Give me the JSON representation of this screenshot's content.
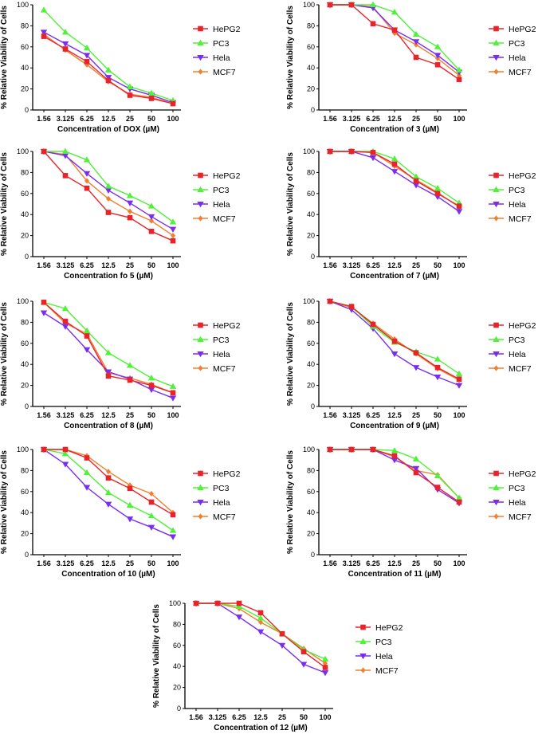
{
  "series_order": [
    "HePG2",
    "PC3",
    "Hela",
    "MCF7"
  ],
  "series_colors": {
    "HePG2": "#e8242a",
    "PC3": "#4ef237",
    "Hela": "#7a2cf0",
    "MCF7": "#f08030"
  },
  "series_markers": {
    "HePG2": "square",
    "PC3": "triangle-up",
    "Hela": "triangle-down",
    "MCF7": "diamond"
  },
  "chart_data": [
    {
      "type": "line",
      "title": "",
      "xlabel": "Concentration of DOX (µM)",
      "ylabel": "% Relative Viability of Cells",
      "categories": [
        "1.56",
        "3.125",
        "6.25",
        "12.5",
        "25",
        "50",
        "100"
      ],
      "ylim": [
        0,
        100
      ],
      "yticks": [
        0,
        20,
        40,
        60,
        80,
        100
      ],
      "legend": [
        "HePG2",
        "PC3",
        "Hela",
        "MCF7"
      ],
      "series": [
        {
          "name": "HePG2",
          "values": [
            70,
            58,
            46,
            28,
            14,
            11,
            6
          ]
        },
        {
          "name": "PC3",
          "values": [
            95,
            74,
            59,
            38,
            22,
            16,
            9
          ]
        },
        {
          "name": "Hela",
          "values": [
            74,
            63,
            52,
            31,
            20,
            14,
            7
          ]
        },
        {
          "name": "MCF7",
          "values": [
            72,
            57,
            43,
            27,
            15,
            12,
            6
          ]
        }
      ]
    },
    {
      "type": "line",
      "title": "",
      "xlabel": "Concentration of 3 (µM)",
      "ylabel": "% Relative Viability of Cells",
      "categories": [
        "1.56",
        "3.125",
        "6.25",
        "12.5",
        "25",
        "50",
        "100"
      ],
      "ylim": [
        0,
        100
      ],
      "yticks": [
        0,
        20,
        40,
        60,
        80,
        100
      ],
      "legend": [
        "HePG2",
        "PC3",
        "Hela",
        "MCF7"
      ],
      "series": [
        {
          "name": "HePG2",
          "values": [
            100,
            100,
            82,
            76,
            50,
            43,
            29
          ]
        },
        {
          "name": "PC3",
          "values": [
            100,
            100,
            100,
            93,
            72,
            60,
            38
          ]
        },
        {
          "name": "Hela",
          "values": [
            100,
            100,
            97,
            76,
            65,
            52,
            36
          ]
        },
        {
          "name": "MCF7",
          "values": [
            100,
            100,
            98,
            73,
            62,
            49,
            33
          ]
        }
      ]
    },
    {
      "type": "line",
      "title": "",
      "xlabel": "Concentration fo 5 (µM)",
      "ylabel": "% Relative Viability of Cells",
      "categories": [
        "1.56",
        "3.125",
        "6.25",
        "12.5",
        "25",
        "50",
        "100"
      ],
      "ylim": [
        0,
        100
      ],
      "yticks": [
        0,
        20,
        40,
        60,
        80,
        100
      ],
      "legend": [
        "HePG2",
        "PC3",
        "Hela",
        "MCF7"
      ],
      "series": [
        {
          "name": "HePG2",
          "values": [
            100,
            77,
            65,
            42,
            37,
            24,
            15
          ]
        },
        {
          "name": "PC3",
          "values": [
            100,
            100,
            92,
            67,
            58,
            48,
            33
          ]
        },
        {
          "name": "Hela",
          "values": [
            100,
            96,
            79,
            63,
            51,
            38,
            26
          ]
        },
        {
          "name": "MCF7",
          "values": [
            100,
            97,
            72,
            55,
            43,
            34,
            20
          ]
        }
      ]
    },
    {
      "type": "line",
      "title": "",
      "xlabel": "Concentration of 7 (µM)",
      "ylabel": "% Relative Viability of Cells",
      "categories": [
        "1.56",
        "3.125",
        "6.25",
        "12.5",
        "25",
        "50",
        "100"
      ],
      "ylim": [
        0,
        100
      ],
      "yticks": [
        0,
        20,
        40,
        60,
        80,
        100
      ],
      "legend": [
        "HePG2",
        "PC3",
        "Hela",
        "MCF7"
      ],
      "series": [
        {
          "name": "HePG2",
          "values": [
            100,
            100,
            99,
            88,
            72,
            60,
            48
          ]
        },
        {
          "name": "PC3",
          "values": [
            100,
            100,
            100,
            93,
            76,
            65,
            51
          ]
        },
        {
          "name": "Hela",
          "values": [
            100,
            100,
            94,
            81,
            68,
            57,
            43
          ]
        },
        {
          "name": "MCF7",
          "values": [
            100,
            100,
            99,
            86,
            73,
            61,
            47
          ]
        }
      ]
    },
    {
      "type": "line",
      "title": "",
      "xlabel": "Concentration of 8 (µM)",
      "ylabel": "% Relative Viability of Cells",
      "categories": [
        "1.56",
        "3.125",
        "6.25",
        "12.5",
        "25",
        "50",
        "100"
      ],
      "ylim": [
        0,
        100
      ],
      "yticks": [
        0,
        20,
        40,
        60,
        80,
        100
      ],
      "legend": [
        "HePG2",
        "PC3",
        "Hela",
        "MCF7"
      ],
      "series": [
        {
          "name": "HePG2",
          "values": [
            99,
            81,
            67,
            29,
            25,
            20,
            13
          ]
        },
        {
          "name": "PC3",
          "values": [
            99,
            93,
            72,
            51,
            39,
            27,
            19
          ]
        },
        {
          "name": "Hela",
          "values": [
            89,
            76,
            54,
            33,
            26,
            16,
            8
          ]
        },
        {
          "name": "MCF7",
          "values": [
            99,
            79,
            69,
            32,
            27,
            21,
            13
          ]
        }
      ]
    },
    {
      "type": "line",
      "title": "",
      "xlabel": "Concentration of 9 (µM)",
      "ylabel": "% Relative Viability of Cells",
      "categories": [
        "1.56",
        "3.125",
        "6.25",
        "12.5",
        "25",
        "50",
        "100"
      ],
      "ylim": [
        0,
        100
      ],
      "yticks": [
        0,
        20,
        40,
        60,
        80,
        100
      ],
      "legend": [
        "HePG2",
        "PC3",
        "Hela",
        "MCF7"
      ],
      "series": [
        {
          "name": "HePG2",
          "values": [
            100,
            95,
            78,
            62,
            51,
            37,
            26
          ]
        },
        {
          "name": "PC3",
          "values": [
            100,
            95,
            76,
            61,
            52,
            45,
            31
          ]
        },
        {
          "name": "Hela",
          "values": [
            100,
            92,
            74,
            50,
            37,
            28,
            20
          ]
        },
        {
          "name": "MCF7",
          "values": [
            100,
            94,
            79,
            64,
            50,
            36,
            25
          ]
        }
      ]
    },
    {
      "type": "line",
      "title": "",
      "xlabel": "Concentration of 10 (µM)",
      "ylabel": "% Relative Viability of Cells",
      "categories": [
        "1.56",
        "3.125",
        "6.25",
        "12.5",
        "25",
        "50",
        "100"
      ],
      "ylim": [
        0,
        100
      ],
      "yticks": [
        0,
        20,
        40,
        60,
        80,
        100
      ],
      "legend": [
        "HePG2",
        "PC3",
        "Hela",
        "MCF7"
      ],
      "series": [
        {
          "name": "HePG2",
          "values": [
            100,
            100,
            92,
            73,
            63,
            50,
            38
          ]
        },
        {
          "name": "PC3",
          "values": [
            100,
            96,
            78,
            59,
            47,
            37,
            23
          ]
        },
        {
          "name": "Hela",
          "values": [
            100,
            86,
            64,
            48,
            34,
            26,
            17
          ]
        },
        {
          "name": "MCF7",
          "values": [
            100,
            100,
            94,
            79,
            66,
            58,
            40
          ]
        }
      ]
    },
    {
      "type": "line",
      "title": "",
      "xlabel": "Concentration of 11 (µM)",
      "ylabel": "% Relative Viability of Cells",
      "categories": [
        "1.56",
        "3.125",
        "6.25",
        "12.5",
        "25",
        "50",
        "100"
      ],
      "ylim": [
        0,
        100
      ],
      "yticks": [
        0,
        20,
        40,
        60,
        80,
        100
      ],
      "legend": [
        "HePG2",
        "PC3",
        "Hela",
        "MCF7"
      ],
      "series": [
        {
          "name": "HePG2",
          "values": [
            100,
            100,
            100,
            94,
            78,
            64,
            50
          ]
        },
        {
          "name": "PC3",
          "values": [
            100,
            100,
            100,
            99,
            91,
            75,
            54
          ]
        },
        {
          "name": "Hela",
          "values": [
            100,
            100,
            100,
            90,
            82,
            62,
            49
          ]
        },
        {
          "name": "MCF7",
          "values": [
            100,
            100,
            100,
            93,
            80,
            76,
            54
          ]
        }
      ]
    },
    {
      "type": "line",
      "title": "",
      "xlabel": "Concentration of 12 (µM)",
      "ylabel": "% Relative Viability of Cells",
      "categories": [
        "1.56",
        "3.125",
        "6.25",
        "12.5",
        "25",
        "50",
        "100"
      ],
      "ylim": [
        0,
        100
      ],
      "yticks": [
        0,
        20,
        40,
        60,
        80,
        100
      ],
      "legend": [
        "HePG2",
        "PC3",
        "Hela",
        "MCF7"
      ],
      "series": [
        {
          "name": "HePG2",
          "values": [
            100,
            100,
            100,
            91,
            71,
            54,
            39
          ]
        },
        {
          "name": "PC3",
          "values": [
            100,
            100,
            97,
            86,
            71,
            56,
            47
          ]
        },
        {
          "name": "Hela",
          "values": [
            100,
            100,
            87,
            73,
            60,
            42,
            34
          ]
        },
        {
          "name": "MCF7",
          "values": [
            100,
            100,
            95,
            82,
            71,
            57,
            43
          ]
        }
      ]
    }
  ]
}
